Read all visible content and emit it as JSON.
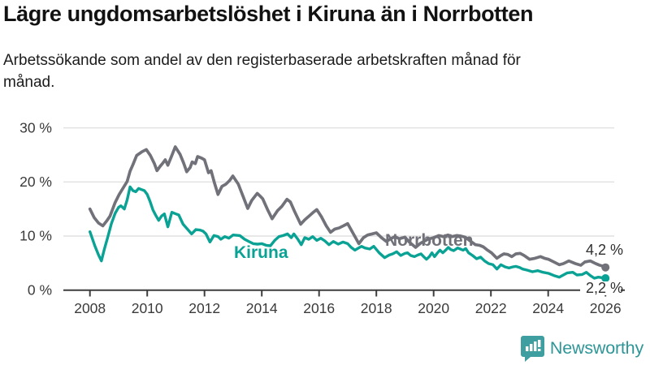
{
  "chart_data": {
    "type": "line",
    "title": "Lägre ungdomsarbetslöshet i Kiruna än i Norrbotten",
    "subtitle": "Arbetssökande som andel av den registerbaserade arbetskraften månad för månad.",
    "unit": "%",
    "grid": "horizontal-gridlines-on",
    "legend_position": "inline-labels-on-lines",
    "x_range": [
      2008,
      2026.1
    ],
    "ylim": [
      0,
      30
    ],
    "y_tick_labels": [
      "30 %",
      "20 %",
      "10 %",
      "0 %"
    ],
    "y_tick_values": [
      30,
      20,
      10,
      0
    ],
    "x_tick_labels": [
      "2008",
      "2010",
      "2012",
      "2014",
      "2016",
      "2018",
      "2020",
      "2022",
      "2024",
      "2026"
    ],
    "x_tick_values": [
      2008,
      2010,
      2012,
      2014,
      2016,
      2018,
      2020,
      2022,
      2024,
      2026
    ],
    "series": [
      {
        "name": "Kiruna",
        "color": "#0aa294",
        "end_label": "2,2 %",
        "last_value": 2.2,
        "points": [
          [
            2008.0,
            10.8
          ],
          [
            2008.17,
            8.2
          ],
          [
            2008.3,
            6.5
          ],
          [
            2008.4,
            5.4
          ],
          [
            2008.5,
            7.5
          ],
          [
            2008.62,
            9.8
          ],
          [
            2008.75,
            12.3
          ],
          [
            2008.88,
            14.2
          ],
          [
            2009.0,
            15.3
          ],
          [
            2009.08,
            15.6
          ],
          [
            2009.2,
            15.0
          ],
          [
            2009.3,
            16.7
          ],
          [
            2009.4,
            19.1
          ],
          [
            2009.5,
            18.4
          ],
          [
            2009.6,
            18.2
          ],
          [
            2009.7,
            18.8
          ],
          [
            2009.8,
            18.6
          ],
          [
            2009.9,
            18.4
          ],
          [
            2010.0,
            17.7
          ],
          [
            2010.1,
            16.4
          ],
          [
            2010.2,
            14.8
          ],
          [
            2010.3,
            13.8
          ],
          [
            2010.4,
            12.9
          ],
          [
            2010.5,
            13.7
          ],
          [
            2010.6,
            14.1
          ],
          [
            2010.72,
            11.7
          ],
          [
            2010.86,
            14.4
          ],
          [
            2011.0,
            14.1
          ],
          [
            2011.1,
            13.9
          ],
          [
            2011.25,
            12.2
          ],
          [
            2011.4,
            11.3
          ],
          [
            2011.55,
            10.4
          ],
          [
            2011.7,
            11.2
          ],
          [
            2011.85,
            11.1
          ],
          [
            2011.95,
            10.9
          ],
          [
            2012.05,
            10.4
          ],
          [
            2012.19,
            8.9
          ],
          [
            2012.33,
            10.1
          ],
          [
            2012.47,
            9.9
          ],
          [
            2012.57,
            9.4
          ],
          [
            2012.71,
            9.9
          ],
          [
            2012.85,
            9.6
          ],
          [
            2013.0,
            10.2
          ],
          [
            2013.23,
            10.1
          ],
          [
            2013.4,
            9.4
          ],
          [
            2013.55,
            9.0
          ],
          [
            2013.7,
            8.6
          ],
          [
            2013.85,
            8.5
          ],
          [
            2014.0,
            8.6
          ],
          [
            2014.15,
            8.3
          ],
          [
            2014.3,
            8.2
          ],
          [
            2014.45,
            9.2
          ],
          [
            2014.6,
            9.9
          ],
          [
            2014.75,
            10.1
          ],
          [
            2014.9,
            10.4
          ],
          [
            2015.03,
            9.7
          ],
          [
            2015.12,
            10.4
          ],
          [
            2015.26,
            9.4
          ],
          [
            2015.38,
            8.4
          ],
          [
            2015.5,
            9.7
          ],
          [
            2015.64,
            9.4
          ],
          [
            2015.78,
            9.9
          ],
          [
            2015.92,
            9.2
          ],
          [
            2016.06,
            9.6
          ],
          [
            2016.2,
            9.1
          ],
          [
            2016.35,
            8.4
          ],
          [
            2016.5,
            9.0
          ],
          [
            2016.67,
            8.5
          ],
          [
            2016.83,
            8.9
          ],
          [
            2017.0,
            8.6
          ],
          [
            2017.12,
            7.9
          ],
          [
            2017.25,
            7.4
          ],
          [
            2017.48,
            8.1
          ],
          [
            2017.6,
            7.8
          ],
          [
            2017.77,
            7.6
          ],
          [
            2017.91,
            8.1
          ],
          [
            2018.1,
            6.9
          ],
          [
            2018.29,
            6.0
          ],
          [
            2018.45,
            6.5
          ],
          [
            2018.57,
            6.7
          ],
          [
            2018.71,
            7.1
          ],
          [
            2018.85,
            6.4
          ],
          [
            2019.0,
            6.8
          ],
          [
            2019.09,
            6.9
          ],
          [
            2019.2,
            6.4
          ],
          [
            2019.33,
            6.2
          ],
          [
            2019.45,
            6.5
          ],
          [
            2019.56,
            6.7
          ],
          [
            2019.65,
            6.2
          ],
          [
            2019.75,
            5.7
          ],
          [
            2019.85,
            6.2
          ],
          [
            2019.94,
            6.9
          ],
          [
            2020.03,
            6.2
          ],
          [
            2020.12,
            6.8
          ],
          [
            2020.22,
            7.4
          ],
          [
            2020.32,
            6.9
          ],
          [
            2020.42,
            7.4
          ],
          [
            2020.51,
            7.9
          ],
          [
            2020.6,
            7.5
          ],
          [
            2020.7,
            7.3
          ],
          [
            2020.84,
            7.8
          ],
          [
            2020.93,
            7.6
          ],
          [
            2021.03,
            7.4
          ],
          [
            2021.12,
            7.7
          ],
          [
            2021.22,
            6.9
          ],
          [
            2021.36,
            6.4
          ],
          [
            2021.5,
            5.8
          ],
          [
            2021.64,
            6.1
          ],
          [
            2021.78,
            5.4
          ],
          [
            2021.92,
            4.9
          ],
          [
            2022.07,
            4.7
          ],
          [
            2022.21,
            3.9
          ],
          [
            2022.35,
            4.7
          ],
          [
            2022.49,
            4.3
          ],
          [
            2022.63,
            4.1
          ],
          [
            2022.77,
            4.3
          ],
          [
            2022.87,
            4.4
          ],
          [
            2023.0,
            4.2
          ],
          [
            2023.11,
            3.9
          ],
          [
            2023.26,
            3.7
          ],
          [
            2023.45,
            3.4
          ],
          [
            2023.64,
            3.6
          ],
          [
            2023.82,
            3.3
          ],
          [
            2024.01,
            3.1
          ],
          [
            2024.2,
            2.7
          ],
          [
            2024.39,
            2.4
          ],
          [
            2024.53,
            2.8
          ],
          [
            2024.67,
            3.2
          ],
          [
            2024.86,
            3.3
          ],
          [
            2025.0,
            2.8
          ],
          [
            2025.19,
            2.9
          ],
          [
            2025.33,
            3.3
          ],
          [
            2025.47,
            2.7
          ],
          [
            2025.61,
            2.2
          ],
          [
            2025.75,
            2.4
          ],
          [
            2025.89,
            2.3
          ],
          [
            2026.0,
            2.2
          ]
        ]
      },
      {
        "name": "Norrbotten",
        "color": "#71717a",
        "end_label": "4,2 %",
        "last_value": 4.2,
        "points": [
          [
            2008.0,
            15.0
          ],
          [
            2008.15,
            13.4
          ],
          [
            2008.3,
            12.4
          ],
          [
            2008.45,
            11.9
          ],
          [
            2008.6,
            12.9
          ],
          [
            2008.7,
            13.7
          ],
          [
            2008.88,
            16.2
          ],
          [
            2009.02,
            17.7
          ],
          [
            2009.16,
            18.9
          ],
          [
            2009.3,
            20.1
          ],
          [
            2009.4,
            22.0
          ],
          [
            2009.5,
            23.2
          ],
          [
            2009.63,
            24.9
          ],
          [
            2009.82,
            25.6
          ],
          [
            2009.97,
            26.0
          ],
          [
            2010.11,
            24.9
          ],
          [
            2010.25,
            23.4
          ],
          [
            2010.34,
            22.1
          ],
          [
            2010.45,
            22.9
          ],
          [
            2010.53,
            23.4
          ],
          [
            2010.63,
            24.1
          ],
          [
            2010.72,
            23.1
          ],
          [
            2010.85,
            24.8
          ],
          [
            2010.98,
            26.5
          ],
          [
            2011.15,
            25.1
          ],
          [
            2011.27,
            23.5
          ],
          [
            2011.38,
            21.9
          ],
          [
            2011.5,
            22.7
          ],
          [
            2011.57,
            23.7
          ],
          [
            2011.68,
            23.4
          ],
          [
            2011.76,
            24.7
          ],
          [
            2011.9,
            24.4
          ],
          [
            2012.0,
            24.1
          ],
          [
            2012.14,
            21.7
          ],
          [
            2012.23,
            22.1
          ],
          [
            2012.35,
            19.8
          ],
          [
            2012.47,
            17.7
          ],
          [
            2012.61,
            19.2
          ],
          [
            2012.75,
            19.6
          ],
          [
            2012.88,
            20.3
          ],
          [
            2012.99,
            21.1
          ],
          [
            2013.18,
            19.6
          ],
          [
            2013.35,
            17.3
          ],
          [
            2013.51,
            15.1
          ],
          [
            2013.65,
            16.6
          ],
          [
            2013.84,
            17.9
          ],
          [
            2013.94,
            17.4
          ],
          [
            2014.03,
            16.9
          ],
          [
            2014.2,
            14.9
          ],
          [
            2014.36,
            13.2
          ],
          [
            2014.55,
            14.7
          ],
          [
            2014.7,
            15.5
          ],
          [
            2014.88,
            16.8
          ],
          [
            2015.0,
            16.3
          ],
          [
            2015.15,
            14.5
          ],
          [
            2015.36,
            12.2
          ],
          [
            2015.5,
            13.0
          ],
          [
            2015.65,
            13.7
          ],
          [
            2015.8,
            14.4
          ],
          [
            2015.92,
            14.9
          ],
          [
            2016.08,
            13.6
          ],
          [
            2016.25,
            11.9
          ],
          [
            2016.4,
            10.7
          ],
          [
            2016.55,
            11.3
          ],
          [
            2016.7,
            11.5
          ],
          [
            2016.85,
            11.9
          ],
          [
            2017.0,
            12.3
          ],
          [
            2017.2,
            10.4
          ],
          [
            2017.39,
            8.6
          ],
          [
            2017.55,
            9.7
          ],
          [
            2017.7,
            10.2
          ],
          [
            2017.85,
            10.4
          ],
          [
            2018.0,
            10.6
          ],
          [
            2018.18,
            9.7
          ],
          [
            2018.35,
            9.0
          ],
          [
            2018.5,
            9.5
          ],
          [
            2018.65,
            9.9
          ],
          [
            2018.8,
            9.5
          ],
          [
            2019.0,
            9.8
          ],
          [
            2019.15,
            8.9
          ],
          [
            2019.37,
            7.9
          ],
          [
            2019.55,
            8.7
          ],
          [
            2019.8,
            9.4
          ],
          [
            2020.0,
            9.7
          ],
          [
            2020.18,
            10.1
          ],
          [
            2020.35,
            9.9
          ],
          [
            2020.5,
            10.2
          ],
          [
            2020.65,
            9.9
          ],
          [
            2020.8,
            10.1
          ],
          [
            2020.95,
            10.0
          ],
          [
            2021.1,
            9.8
          ],
          [
            2021.25,
            9.2
          ],
          [
            2021.46,
            8.4
          ],
          [
            2021.6,
            8.3
          ],
          [
            2021.74,
            8.0
          ],
          [
            2021.88,
            7.4
          ],
          [
            2022.02,
            6.9
          ],
          [
            2022.21,
            5.9
          ],
          [
            2022.35,
            6.4
          ],
          [
            2022.45,
            6.7
          ],
          [
            2022.59,
            6.6
          ],
          [
            2022.73,
            6.2
          ],
          [
            2022.87,
            6.7
          ],
          [
            2023.02,
            6.8
          ],
          [
            2023.16,
            6.4
          ],
          [
            2023.35,
            5.7
          ],
          [
            2023.54,
            5.9
          ],
          [
            2023.73,
            6.2
          ],
          [
            2023.87,
            5.9
          ],
          [
            2024.01,
            5.7
          ],
          [
            2024.2,
            5.2
          ],
          [
            2024.39,
            4.7
          ],
          [
            2024.53,
            4.9
          ],
          [
            2024.72,
            5.4
          ],
          [
            2024.95,
            4.9
          ],
          [
            2025.14,
            4.6
          ],
          [
            2025.28,
            5.2
          ],
          [
            2025.47,
            5.4
          ],
          [
            2025.66,
            4.9
          ],
          [
            2025.8,
            4.6
          ],
          [
            2025.94,
            4.4
          ],
          [
            2026.0,
            4.2
          ]
        ]
      }
    ],
    "colors": {
      "kiruna_line": "#0aa294",
      "norrbotten_line": "#71717a",
      "gridline": "#e1e1e1",
      "axis": "#3d3d3d",
      "tick_text": "#3a3a3a"
    }
  },
  "footer": {
    "brand": "Newsworthy",
    "logo_icon": "bar-chart-speech-bubble-icon",
    "brand_color": "#2f9697"
  }
}
